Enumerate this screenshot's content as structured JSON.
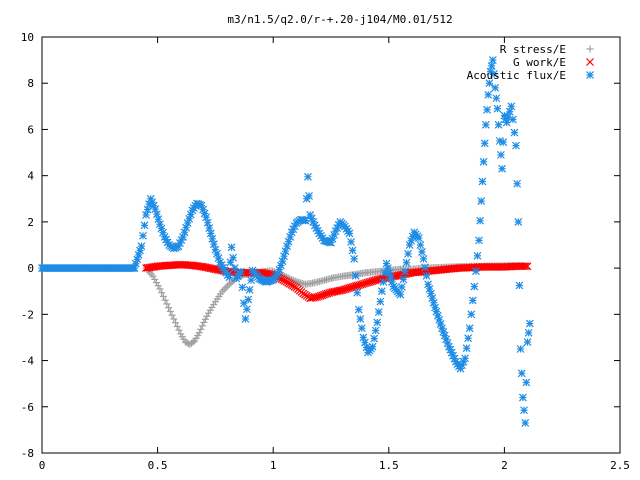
{
  "chart_data": {
    "type": "scatter",
    "title": "m3/n1.5/q2.0/r-+.20-j104/M0.01/512",
    "xlabel": "",
    "ylabel": "",
    "xlim": [
      0,
      2.5
    ],
    "ylim": [
      -8,
      10
    ],
    "x_ticks": [
      "0",
      "0.5",
      "1",
      "1.5",
      "2",
      "2.5"
    ],
    "y_ticks": [
      "-8",
      "-6",
      "-4",
      "-2",
      "0",
      "2",
      "4",
      "6",
      "8",
      "10"
    ],
    "grid": false,
    "legend_placement": "top-right",
    "series": [
      {
        "name": "R stress/E",
        "color": "#a0a0a4",
        "marker": "plus",
        "points": [
          [
            0.45,
            0.0
          ],
          [
            0.48,
            -0.35
          ],
          [
            0.51,
            -0.9
          ],
          [
            0.54,
            -1.55
          ],
          [
            0.57,
            -2.2
          ],
          [
            0.6,
            -2.85
          ],
          [
            0.62,
            -3.2
          ],
          [
            0.64,
            -3.3
          ],
          [
            0.66,
            -3.15
          ],
          [
            0.68,
            -2.8
          ],
          [
            0.7,
            -2.35
          ],
          [
            0.72,
            -1.95
          ],
          [
            0.75,
            -1.45
          ],
          [
            0.78,
            -1.0
          ],
          [
            0.81,
            -0.7
          ],
          [
            0.84,
            -0.45
          ],
          [
            0.87,
            -0.3
          ],
          [
            0.9,
            -0.25
          ],
          [
            0.93,
            -0.2
          ],
          [
            0.96,
            -0.15
          ],
          [
            0.99,
            -0.12
          ],
          [
            1.02,
            -0.2
          ],
          [
            1.05,
            -0.35
          ],
          [
            1.08,
            -0.5
          ],
          [
            1.11,
            -0.62
          ],
          [
            1.14,
            -0.7
          ],
          [
            1.17,
            -0.65
          ],
          [
            1.2,
            -0.58
          ],
          [
            1.23,
            -0.5
          ],
          [
            1.26,
            -0.42
          ],
          [
            1.3,
            -0.35
          ],
          [
            1.35,
            -0.28
          ],
          [
            1.4,
            -0.2
          ],
          [
            1.45,
            -0.15
          ],
          [
            1.5,
            -0.1
          ],
          [
            1.55,
            -0.05
          ],
          [
            1.6,
            -0.05
          ],
          [
            1.65,
            0.0
          ],
          [
            1.7,
            0.02
          ],
          [
            1.75,
            0.04
          ],
          [
            1.8,
            0.06
          ],
          [
            1.85,
            0.08
          ],
          [
            1.9,
            0.08
          ],
          [
            1.95,
            0.09
          ],
          [
            2.0,
            0.1
          ],
          [
            2.05,
            0.1
          ],
          [
            2.08,
            0.1
          ]
        ]
      },
      {
        "name": "G work/E",
        "color": "#ff0000",
        "marker": "cross",
        "points": [
          [
            0.45,
            0.0
          ],
          [
            0.5,
            0.08
          ],
          [
            0.55,
            0.12
          ],
          [
            0.6,
            0.15
          ],
          [
            0.65,
            0.12
          ],
          [
            0.7,
            0.05
          ],
          [
            0.75,
            -0.05
          ],
          [
            0.8,
            -0.15
          ],
          [
            0.85,
            -0.2
          ],
          [
            0.9,
            -0.2
          ],
          [
            0.95,
            -0.2
          ],
          [
            1.0,
            -0.3
          ],
          [
            1.05,
            -0.55
          ],
          [
            1.1,
            -0.85
          ],
          [
            1.13,
            -1.1
          ],
          [
            1.16,
            -1.3
          ],
          [
            1.19,
            -1.25
          ],
          [
            1.22,
            -1.15
          ],
          [
            1.25,
            -1.05
          ],
          [
            1.3,
            -0.95
          ],
          [
            1.35,
            -0.8
          ],
          [
            1.4,
            -0.65
          ],
          [
            1.45,
            -0.5
          ],
          [
            1.5,
            -0.4
          ],
          [
            1.55,
            -0.3
          ],
          [
            1.6,
            -0.2
          ],
          [
            1.65,
            -0.15
          ],
          [
            1.7,
            -0.1
          ],
          [
            1.75,
            -0.05
          ],
          [
            1.8,
            0.0
          ],
          [
            1.85,
            0.02
          ],
          [
            1.9,
            0.05
          ],
          [
            1.95,
            0.05
          ],
          [
            2.0,
            0.05
          ],
          [
            2.05,
            0.08
          ],
          [
            2.1,
            0.08
          ]
        ]
      },
      {
        "name": "Acoustic flux/E",
        "color": "#1e8ce6",
        "marker": "star",
        "points": [
          [
            0.0,
            0.0
          ],
          [
            0.1,
            0.0
          ],
          [
            0.2,
            0.0
          ],
          [
            0.3,
            0.0
          ],
          [
            0.4,
            0.0
          ],
          [
            0.43,
            0.95
          ],
          [
            0.45,
            2.3
          ],
          [
            0.47,
            3.0
          ],
          [
            0.49,
            2.55
          ],
          [
            0.51,
            1.9
          ],
          [
            0.53,
            1.35
          ],
          [
            0.55,
            1.0
          ],
          [
            0.57,
            0.85
          ],
          [
            0.59,
            0.95
          ],
          [
            0.61,
            1.35
          ],
          [
            0.63,
            1.95
          ],
          [
            0.65,
            2.5
          ],
          [
            0.67,
            2.8
          ],
          [
            0.69,
            2.7
          ],
          [
            0.71,
            2.2
          ],
          [
            0.73,
            1.5
          ],
          [
            0.75,
            0.8
          ],
          [
            0.77,
            0.25
          ],
          [
            0.79,
            -0.1
          ],
          [
            0.81,
            -0.4
          ],
          [
            0.82,
            0.9
          ],
          [
            0.84,
            -0.45
          ],
          [
            0.86,
            -0.15
          ],
          [
            0.88,
            -2.2
          ],
          [
            0.91,
            -0.1
          ],
          [
            0.94,
            -0.45
          ],
          [
            0.97,
            -0.6
          ],
          [
            1.0,
            -0.5
          ],
          [
            1.02,
            -0.25
          ],
          [
            1.04,
            0.3
          ],
          [
            1.06,
            0.95
          ],
          [
            1.08,
            1.55
          ],
          [
            1.1,
            1.95
          ],
          [
            1.12,
            2.1
          ],
          [
            1.14,
            2.05
          ],
          [
            1.15,
            3.95
          ],
          [
            1.16,
            2.3
          ],
          [
            1.18,
            1.85
          ],
          [
            1.2,
            1.5
          ],
          [
            1.22,
            1.2
          ],
          [
            1.25,
            1.1
          ],
          [
            1.27,
            1.6
          ],
          [
            1.29,
            2.0
          ],
          [
            1.31,
            1.8
          ],
          [
            1.33,
            1.5
          ],
          [
            1.35,
            0.4
          ],
          [
            1.37,
            -1.8
          ],
          [
            1.39,
            -3.0
          ],
          [
            1.41,
            -3.65
          ],
          [
            1.43,
            -3.4
          ],
          [
            1.45,
            -2.35
          ],
          [
            1.47,
            -1.0
          ],
          [
            1.49,
            0.2
          ],
          [
            1.52,
            -0.8
          ],
          [
            1.55,
            -1.15
          ],
          [
            1.57,
            -0.15
          ],
          [
            1.59,
            1.0
          ],
          [
            1.61,
            1.55
          ],
          [
            1.63,
            1.3
          ],
          [
            1.65,
            0.4
          ],
          [
            1.67,
            -0.7
          ],
          [
            1.7,
            -1.7
          ],
          [
            1.73,
            -2.6
          ],
          [
            1.76,
            -3.4
          ],
          [
            1.79,
            -4.05
          ],
          [
            1.81,
            -4.35
          ],
          [
            1.83,
            -3.9
          ],
          [
            1.85,
            -2.6
          ],
          [
            1.87,
            -0.8
          ],
          [
            1.89,
            1.2
          ],
          [
            1.9,
            2.9
          ],
          [
            1.91,
            4.6
          ],
          [
            1.92,
            6.2
          ],
          [
            1.93,
            7.5
          ],
          [
            1.94,
            8.5
          ],
          [
            1.95,
            9.0
          ],
          [
            1.96,
            7.8
          ],
          [
            1.97,
            6.9
          ],
          [
            1.98,
            5.5
          ],
          [
            1.99,
            4.3
          ],
          [
            2.0,
            6.6
          ],
          [
            2.01,
            6.3
          ],
          [
            2.03,
            7.0
          ],
          [
            2.05,
            5.3
          ],
          [
            2.06,
            2.0
          ],
          [
            2.07,
            -3.5
          ],
          [
            2.08,
            -5.6
          ],
          [
            2.09,
            -6.7
          ],
          [
            2.1,
            -3.2
          ],
          [
            2.11,
            -2.4
          ]
        ]
      }
    ]
  }
}
